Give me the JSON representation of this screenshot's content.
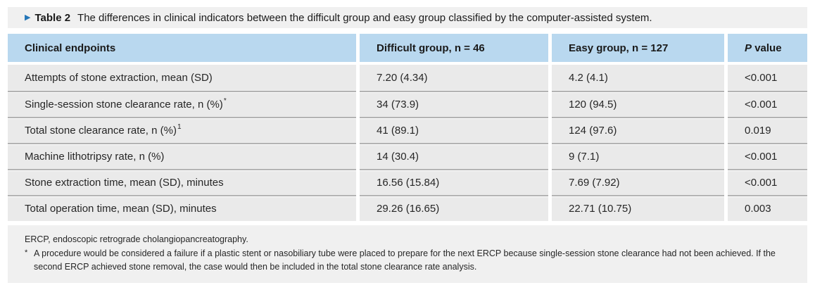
{
  "caption": {
    "marker": "▶",
    "label": "Table 2",
    "text": "The differences in clinical indicators between the difficult group and easy group classified by the computer-assisted system."
  },
  "columns": {
    "endpoints": "Clinical endpoints",
    "difficult": "Difficult group, n = 46",
    "easy": "Easy group, n = 127",
    "p_italic": "P",
    "p_rest": "value"
  },
  "rows": [
    {
      "endpoint": "Attempts of stone extraction, mean (SD)",
      "sup": "",
      "difficult": "7.20 (4.34)",
      "easy": "4.2 (4.1)",
      "p": "<0.001"
    },
    {
      "endpoint": "Single-session stone clearance rate, n (%)",
      "sup": "*",
      "difficult": "34 (73.9)",
      "easy": "120 (94.5)",
      "p": "<0.001"
    },
    {
      "endpoint": "Total stone clearance rate, n (%)",
      "sup": "1",
      "difficult": "41 (89.1)",
      "easy": "124 (97.6)",
      "p": "0.019"
    },
    {
      "endpoint": "Machine lithotripsy rate, n (%)",
      "sup": "",
      "difficult": "14 (30.4)",
      "easy": "9 (7.1)",
      "p": "<0.001"
    },
    {
      "endpoint": "Stone extraction time, mean (SD), minutes",
      "sup": "",
      "difficult": "16.56 (15.84)",
      "easy": "7.69 (7.92)",
      "p": "<0.001"
    },
    {
      "endpoint": "Total operation time, mean (SD), minutes",
      "sup": "",
      "difficult": "29.26 (16.65)",
      "easy": "22.71 (10.75)",
      "p": "0.003"
    }
  ],
  "footnotes": {
    "abbrev": "ERCP, endoscopic retrograde cholangiopancreatography.",
    "star_marker": "*",
    "star_text": "A procedure would be considered a failure if a plastic stent or nasobiliary tube were placed to prepare for the next ERCP because single-session stone clearance had not been achieved. If the second ERCP achieved stone removal, the case would then be included in the total stone clearance rate analysis."
  },
  "colors": {
    "header_bg": "#b9d8ef",
    "row_bg": "#eaeaea",
    "band_bg": "#f0f0f0",
    "separator": "#b3b3b3",
    "marker_blue": "#2476b8"
  }
}
